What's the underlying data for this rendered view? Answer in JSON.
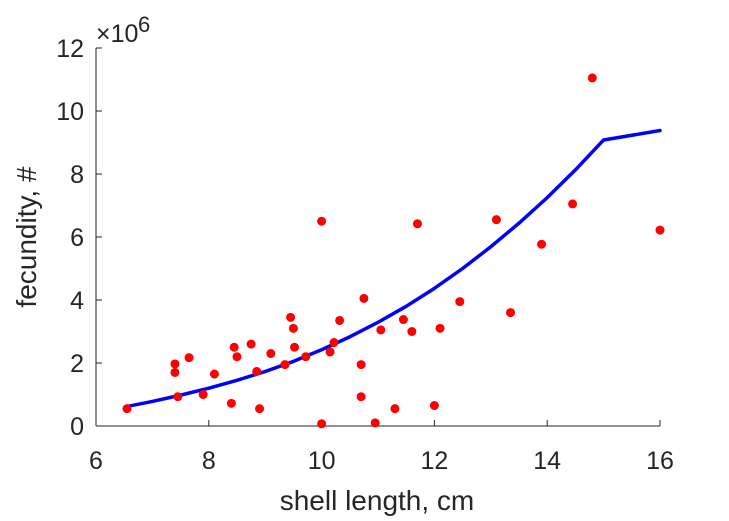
{
  "chart_data": {
    "type": "scatter",
    "xlabel": "shell length, cm",
    "ylabel": "fecundity, #",
    "y_multiplier_label": "×10",
    "y_multiplier_exponent": "6",
    "xlim": [
      6,
      16
    ],
    "ylim": [
      0,
      12
    ],
    "x_ticks": [
      6,
      8,
      10,
      12,
      14,
      16
    ],
    "y_ticks": [
      0,
      2,
      4,
      6,
      8,
      10,
      12
    ],
    "grid": false,
    "y_units_scale": 1000000,
    "series": [
      {
        "type": "scatter",
        "color": "#ff0000",
        "points": [
          [
            6.55,
            0.55
          ],
          [
            7.4,
            1.97
          ],
          [
            7.4,
            1.7
          ],
          [
            7.45,
            0.93
          ],
          [
            7.65,
            2.17
          ],
          [
            7.9,
            1.0
          ],
          [
            8.1,
            1.65
          ],
          [
            8.4,
            0.72
          ],
          [
            8.45,
            2.5
          ],
          [
            8.5,
            2.2
          ],
          [
            8.75,
            2.6
          ],
          [
            8.85,
            1.73
          ],
          [
            8.9,
            0.55
          ],
          [
            9.1,
            2.3
          ],
          [
            9.35,
            1.95
          ],
          [
            9.45,
            3.45
          ],
          [
            9.5,
            3.1
          ],
          [
            9.52,
            2.5
          ],
          [
            9.72,
            2.2
          ],
          [
            10.0,
            6.5
          ],
          [
            10.0,
            0.07
          ],
          [
            10.15,
            2.35
          ],
          [
            10.22,
            2.65
          ],
          [
            10.32,
            3.35
          ],
          [
            10.7,
            1.95
          ],
          [
            10.7,
            0.93
          ],
          [
            10.75,
            4.05
          ],
          [
            10.95,
            0.1
          ],
          [
            11.05,
            3.05
          ],
          [
            11.3,
            0.55
          ],
          [
            11.45,
            3.38
          ],
          [
            11.6,
            3.0
          ],
          [
            11.7,
            6.42
          ],
          [
            12.0,
            0.65
          ],
          [
            12.1,
            3.1
          ],
          [
            12.45,
            3.95
          ],
          [
            13.1,
            6.55
          ],
          [
            13.35,
            3.6
          ],
          [
            13.9,
            5.77
          ],
          [
            14.45,
            7.05
          ],
          [
            14.8,
            11.05
          ],
          [
            16.0,
            6.22
          ]
        ]
      },
      {
        "type": "line",
        "color": "#0000ff",
        "fit_points": [
          [
            6.55,
            0.62
          ],
          [
            7,
            0.78
          ],
          [
            7.5,
            0.98
          ],
          [
            8,
            1.2
          ],
          [
            8.5,
            1.45
          ],
          [
            9,
            1.73
          ],
          [
            9.5,
            2.05
          ],
          [
            10,
            2.42
          ],
          [
            10.5,
            2.83
          ],
          [
            11,
            3.29
          ],
          [
            11.5,
            3.8
          ],
          [
            12,
            4.37
          ],
          [
            12.5,
            5.0
          ],
          [
            13,
            5.69
          ],
          [
            13.5,
            6.44
          ],
          [
            14,
            7.25
          ],
          [
            14.5,
            8.13
          ],
          [
            15,
            9.08
          ],
          [
            16,
            9.38
          ]
        ]
      }
    ]
  }
}
